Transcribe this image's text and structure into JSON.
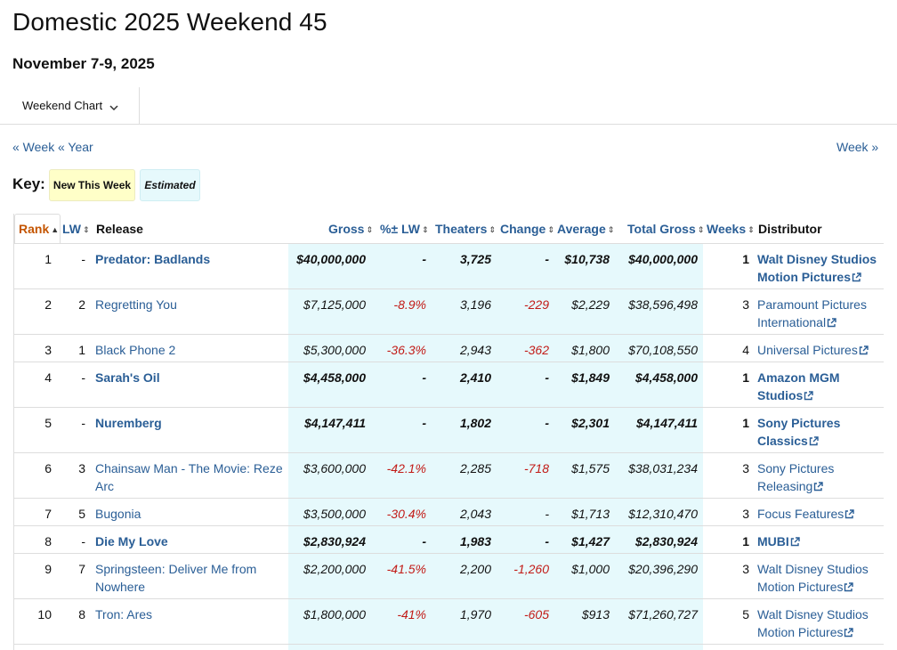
{
  "page": {
    "title": "Domestic 2025 Weekend 45",
    "date_range": "November 7-9, 2025"
  },
  "tabs": {
    "dropdown_label": "Weekend Chart",
    "icon": "chevron-down-icon"
  },
  "nav": {
    "prev_week": "« Week",
    "prev_year": "« Year",
    "next_week": "Week »"
  },
  "key": {
    "label": "Key:",
    "new_this_week": "New This Week",
    "estimated": "Estimated"
  },
  "colors": {
    "link": "#2a5e96",
    "negative": "#c21b17",
    "new_bg": "#ffffc8",
    "estimated_bg": "#e6f9fc",
    "rank_sort": "#c45500"
  },
  "table": {
    "headers": {
      "rank": "Rank",
      "lw": "LW",
      "release": "Release",
      "gross": "Gross",
      "pct_lw": "%± LW",
      "theaters": "Theaters",
      "change": "Change",
      "average": "Average",
      "total_gross": "Total Gross",
      "weeks": "Weeks",
      "distributor": "Distributor"
    },
    "rows": [
      {
        "rank": "1",
        "lw": "-",
        "release": "Predator: Badlands",
        "gross": "$40,000,000",
        "pct_lw": "-",
        "theaters": "3,725",
        "change": "-",
        "average": "$10,738",
        "total_gross": "$40,000,000",
        "weeks": "1",
        "distributor": "Walt Disney Studios Motion Pictures",
        "new": true
      },
      {
        "rank": "2",
        "lw": "2",
        "release": "Regretting You",
        "gross": "$7,125,000",
        "pct_lw": "-8.9%",
        "theaters": "3,196",
        "change": "-229",
        "average": "$2,229",
        "total_gross": "$38,596,498",
        "weeks": "3",
        "distributor": "Paramount Pictures International",
        "new": false
      },
      {
        "rank": "3",
        "lw": "1",
        "release": "Black Phone 2",
        "gross": "$5,300,000",
        "pct_lw": "-36.3%",
        "theaters": "2,943",
        "change": "-362",
        "average": "$1,800",
        "total_gross": "$70,108,550",
        "weeks": "4",
        "distributor": "Universal Pictures",
        "new": false
      },
      {
        "rank": "4",
        "lw": "-",
        "release": "Sarah's Oil",
        "gross": "$4,458,000",
        "pct_lw": "-",
        "theaters": "2,410",
        "change": "-",
        "average": "$1,849",
        "total_gross": "$4,458,000",
        "weeks": "1",
        "distributor": "Amazon MGM Studios",
        "new": true
      },
      {
        "rank": "5",
        "lw": "-",
        "release": "Nuremberg",
        "gross": "$4,147,411",
        "pct_lw": "-",
        "theaters": "1,802",
        "change": "-",
        "average": "$2,301",
        "total_gross": "$4,147,411",
        "weeks": "1",
        "distributor": "Sony Pictures Classics",
        "new": true
      },
      {
        "rank": "6",
        "lw": "3",
        "release": "Chainsaw Man - The Movie: Reze Arc",
        "gross": "$3,600,000",
        "pct_lw": "-42.1%",
        "theaters": "2,285",
        "change": "-718",
        "average": "$1,575",
        "total_gross": "$38,031,234",
        "weeks": "3",
        "distributor": "Sony Pictures Releasing",
        "new": false
      },
      {
        "rank": "7",
        "lw": "5",
        "release": "Bugonia",
        "gross": "$3,500,000",
        "pct_lw": "-30.4%",
        "theaters": "2,043",
        "change": "-",
        "average": "$1,713",
        "total_gross": "$12,310,470",
        "weeks": "3",
        "distributor": "Focus Features",
        "new": false
      },
      {
        "rank": "8",
        "lw": "-",
        "release": "Die My Love",
        "gross": "$2,830,924",
        "pct_lw": "-",
        "theaters": "1,983",
        "change": "-",
        "average": "$1,427",
        "total_gross": "$2,830,924",
        "weeks": "1",
        "distributor": "MUBI",
        "new": true
      },
      {
        "rank": "9",
        "lw": "7",
        "release": "Springsteen: Deliver Me from Nowhere",
        "gross": "$2,200,000",
        "pct_lw": "-41.5%",
        "theaters": "2,200",
        "change": "-1,260",
        "average": "$1,000",
        "total_gross": "$20,396,290",
        "weeks": "3",
        "distributor": "Walt Disney Studios Motion Pictures",
        "new": false
      },
      {
        "rank": "10",
        "lw": "8",
        "release": "Tron: Ares",
        "gross": "$1,800,000",
        "pct_lw": "-41%",
        "theaters": "1,970",
        "change": "-605",
        "average": "$913",
        "total_gross": "$71,260,727",
        "weeks": "5",
        "distributor": "Walt Disney Studios Motion Pictures",
        "new": false
      }
    ]
  }
}
